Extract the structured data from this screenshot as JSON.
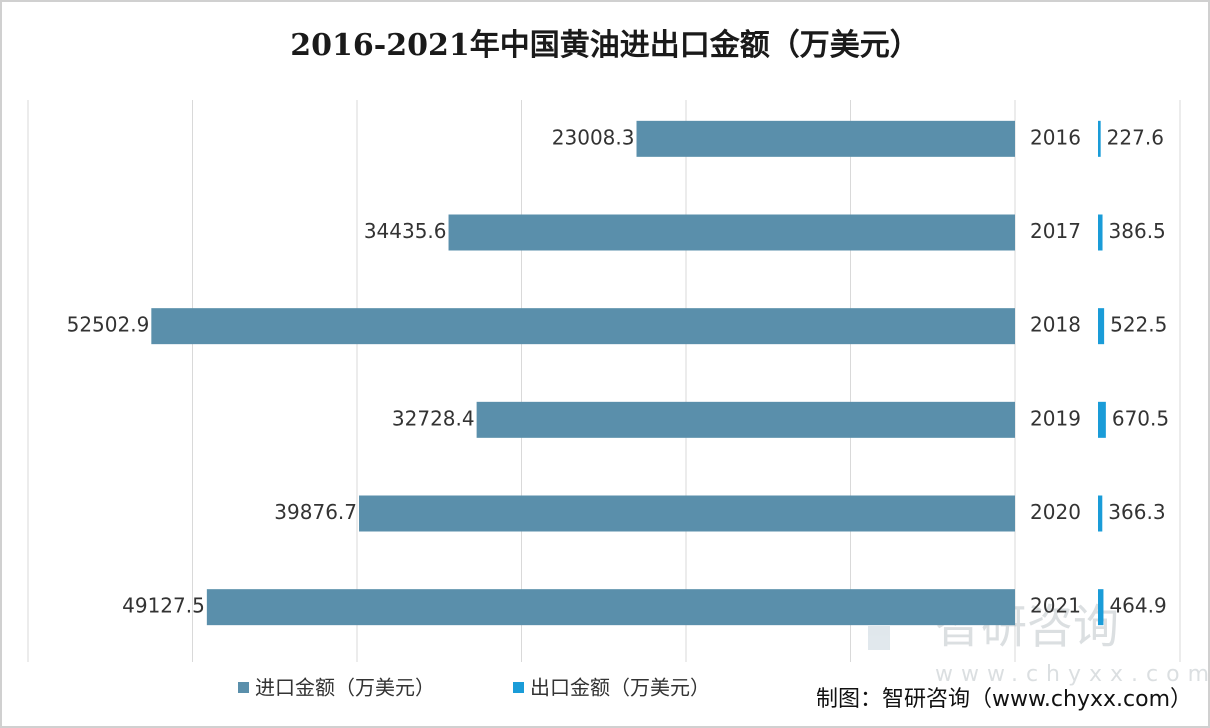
{
  "chart_data": {
    "type": "butterfly-bar",
    "title": "2016-2021年中国黄油进出口金额（万美元）",
    "categories": [
      "2016",
      "2017",
      "2018",
      "2019",
      "2020",
      "2021"
    ],
    "series": [
      {
        "name": "进口金额（万美元）",
        "color": "#5a8fab",
        "values": [
          23008.3,
          34435.6,
          52502.9,
          32728.4,
          39876.7,
          49127.5
        ]
      },
      {
        "name": "出口金额（万美元）",
        "color": "#1a9cd8",
        "values": [
          227.6,
          386.5,
          522.5,
          670.5,
          366.3,
          464.9
        ],
        "axis": "x2"
      }
    ],
    "xlim": [
      0,
      60000
    ],
    "xticks": [
      0,
      10000,
      20000,
      30000,
      40000,
      50000,
      60000
    ],
    "x2lim": [
      0,
      7000
    ],
    "grid": true,
    "legend": "bottom",
    "source": "制图：智研咨询（www.chyxx.com）",
    "watermark": [
      "智研咨询",
      "www.chyxx.com"
    ]
  }
}
